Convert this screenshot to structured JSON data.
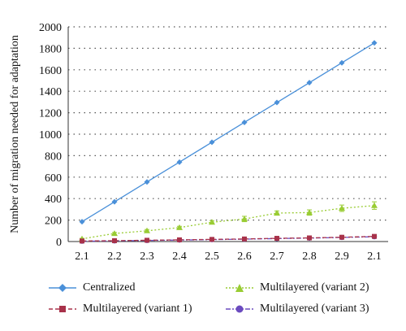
{
  "chart_data": {
    "type": "line",
    "title": "",
    "xlabel": "",
    "ylabel": "Number of migration needed for adaptation",
    "categories": [
      "2.1",
      "2.2",
      "2.3",
      "2.4",
      "2.5",
      "2.6",
      "2.7",
      "2.8",
      "2.9",
      "2.1"
    ],
    "ylim": [
      0,
      2000
    ],
    "yticks": [
      "0",
      "200",
      "400",
      "600",
      "800",
      "1000",
      "1200",
      "1400",
      "1600",
      "1800",
      "2000"
    ],
    "grid": "horizontal dotted",
    "legend_position": "bottom",
    "series": [
      {
        "name": "Centralized",
        "color": "#4a90d9",
        "marker": "diamond",
        "line": "solid",
        "values": [
          185,
          370,
          555,
          740,
          925,
          1110,
          1295,
          1480,
          1665,
          1850
        ]
      },
      {
        "name": "Multilayered (variant 1)",
        "color": "#a8324a",
        "marker": "square",
        "line": "dashed",
        "values": [
          5,
          8,
          12,
          16,
          20,
          24,
          30,
          34,
          40,
          48
        ]
      },
      {
        "name": "Multilayered (variant 2)",
        "color": "#99cc33",
        "marker": "triangle",
        "line": "dotted",
        "values": [
          25,
          75,
          100,
          130,
          180,
          210,
          265,
          270,
          310,
          335
        ],
        "errors": [
          5,
          10,
          12,
          12,
          15,
          25,
          20,
          25,
          30,
          35
        ]
      },
      {
        "name": "Multilayered (variant 3)",
        "color": "#6b4bbf",
        "marker": "circle",
        "line": "dash-dot",
        "values": [
          3,
          6,
          10,
          14,
          18,
          22,
          28,
          32,
          38,
          45
        ]
      }
    ]
  }
}
